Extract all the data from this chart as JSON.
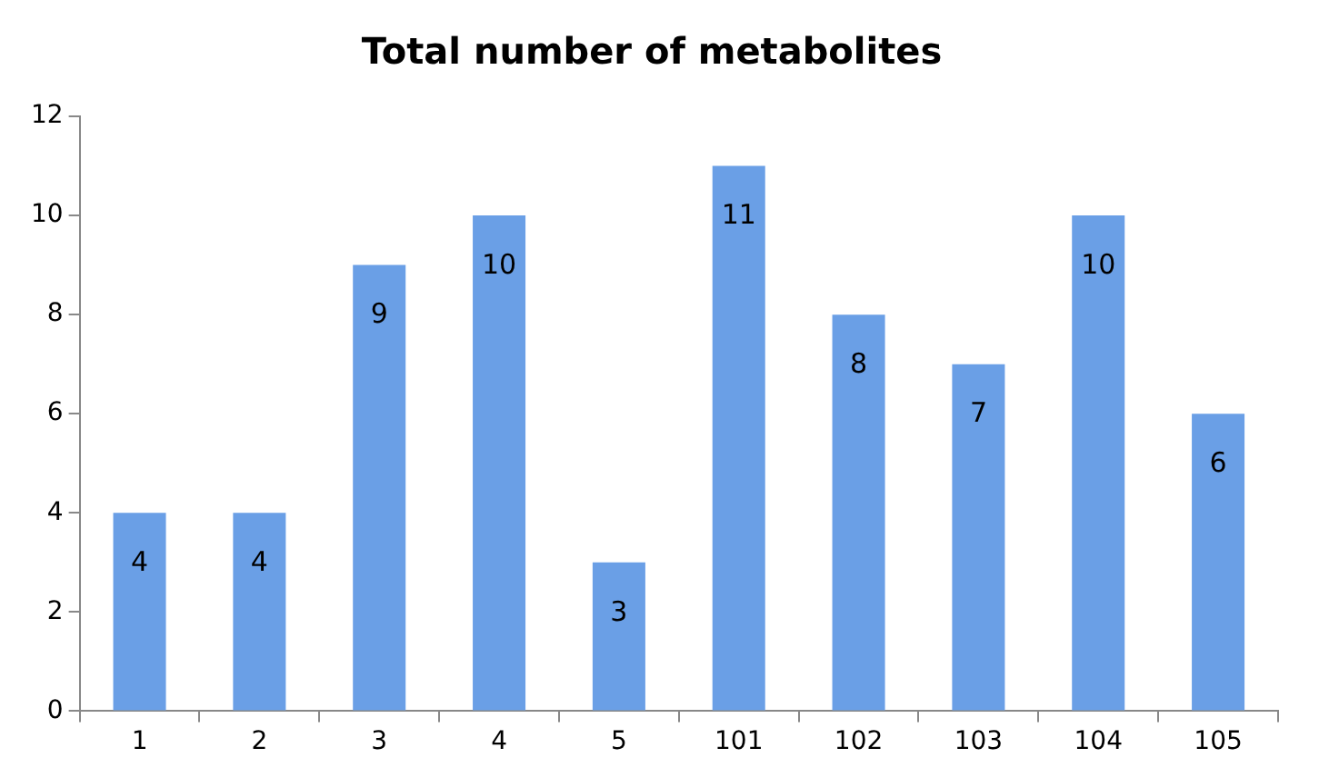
{
  "chart_data": {
    "type": "bar",
    "title": "Total number of metabolites",
    "categories": [
      "1",
      "2",
      "3",
      "4",
      "5",
      "101",
      "102",
      "103",
      "104",
      "105"
    ],
    "values": [
      4,
      4,
      9,
      10,
      3,
      11,
      8,
      7,
      10,
      6
    ],
    "color": "#6a9fe6",
    "ylim": [
      0,
      12
    ],
    "yticks": [
      0,
      2,
      4,
      6,
      8,
      10,
      12
    ],
    "grid": false,
    "legend": false,
    "data_labels": true
  }
}
